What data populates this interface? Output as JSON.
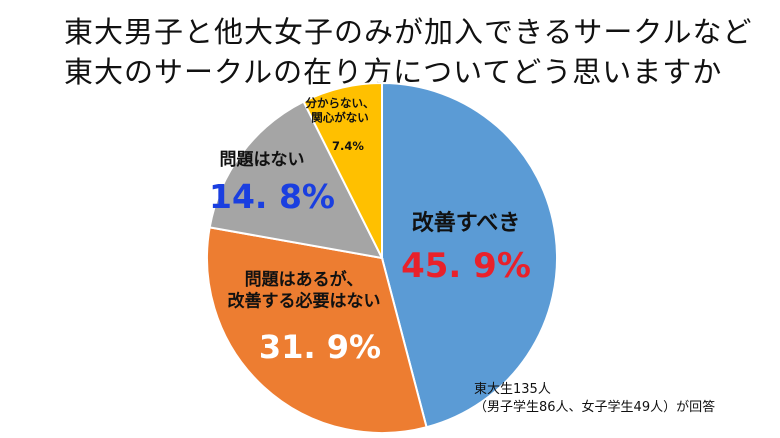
{
  "title_lines": [
    "東大男子と他大女子のみが加入できるサークルなど",
    "東大のサークルの在り方についてどう思いますか"
  ],
  "footnote": {
    "line1": "東大生135人",
    "line2": "（男子学生86人、女子学生49人）が回答"
  },
  "chart_data": {
    "type": "pie",
    "title": "東大男子と他大女子のみが加入できるサークルなど 東大のサークルの在り方についてどう思いますか",
    "unit": "%",
    "slices": [
      {
        "label": "改善すべき",
        "value": 45.9,
        "display": "45. 9%",
        "color": "#5b9bd5",
        "label_color": "#111111",
        "value_color": "#e8212b"
      },
      {
        "label": "問題はあるが、\n改善する必要はない",
        "value": 31.9,
        "display": "31. 9%",
        "color": "#ed7d31",
        "label_color": "#111111",
        "value_color": "#ffffff"
      },
      {
        "label": "問題はない",
        "value": 14.8,
        "display": "14. 8%",
        "color": "#a5a5a5",
        "label_color": "#111111",
        "value_color": "#1a3fe0"
      },
      {
        "label": "分からない、\n関心がない",
        "value": 7.4,
        "display": "7.4%",
        "color": "#ffc000",
        "label_color": "#111111",
        "value_color": "#111111"
      }
    ]
  }
}
